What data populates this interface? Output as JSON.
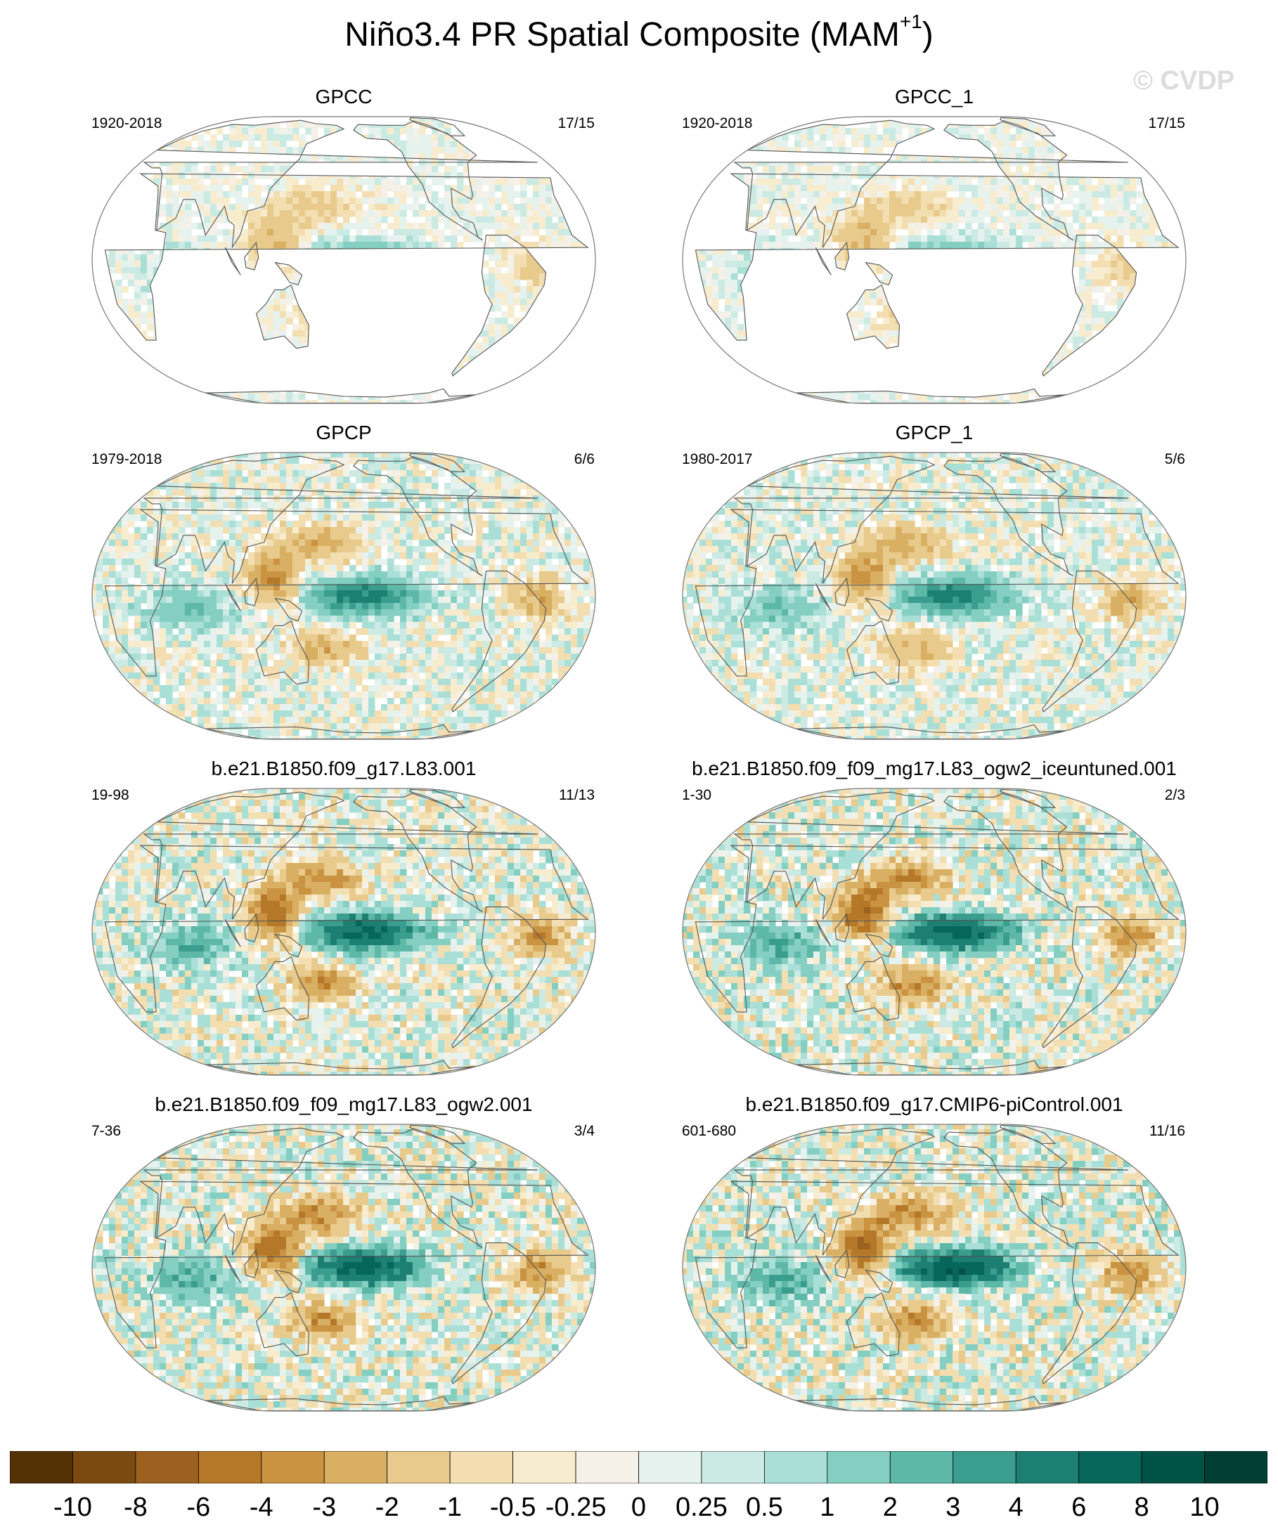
{
  "figure": {
    "title_main": "Niño3.4 PR Spatial Composite (MAM",
    "title_sup": "+1",
    "title_end": ")",
    "watermark": "© CVDP"
  },
  "panels": [
    {
      "name": "GPCC",
      "years": "1920-2018",
      "count": "17/15",
      "coverage": "land",
      "strength": 0.35
    },
    {
      "name": "GPCC_1",
      "years": "1920-2018",
      "count": "17/15",
      "coverage": "land",
      "strength": 0.35
    },
    {
      "name": "GPCP",
      "years": "1979-2018",
      "count": "6/6",
      "coverage": "global",
      "strength": 0.6
    },
    {
      "name": "GPCP_1",
      "years": "1980-2017",
      "count": "5/6",
      "coverage": "global",
      "strength": 0.6
    },
    {
      "name": "b.e21.B1850.f09_g17.L83.001",
      "years": "19-98",
      "count": "11/13",
      "coverage": "global",
      "strength": 0.85
    },
    {
      "name": "b.e21.B1850.f09_f09_mg17.L83_ogw2_iceuntuned.001",
      "years": "1-30",
      "count": "2/3",
      "coverage": "global",
      "strength": 0.9
    },
    {
      "name": "b.e21.B1850.f09_f09_mg17.L83_ogw2.001",
      "years": "7-36",
      "count": "3/4",
      "coverage": "global",
      "strength": 0.9
    },
    {
      "name": "b.e21.B1850.f09_g17.CMIP6-piControl.001",
      "years": "601-680",
      "count": "11/16",
      "coverage": "global",
      "strength": 0.95
    }
  ],
  "colorbar": {
    "labels": [
      "-10",
      "-8",
      "-6",
      "-4",
      "-3",
      "-2",
      "-1",
      "-0.5",
      "-0.25",
      "0",
      "0.25",
      "0.5",
      "1",
      "2",
      "3",
      "4",
      "6",
      "8",
      "10"
    ],
    "colors": [
      "#543005",
      "#7a4a10",
      "#9c6120",
      "#b57829",
      "#c99341",
      "#d9b063",
      "#e8cb8c",
      "#f2deb1",
      "#f7eccd",
      "#f5f1e8",
      "#e6f2ee",
      "#cbeae3",
      "#a9dfd6",
      "#84cec2",
      "#5db8a8",
      "#3a9d8e",
      "#1d7f72",
      "#07665a",
      "#005246",
      "#003d33"
    ]
  }
}
